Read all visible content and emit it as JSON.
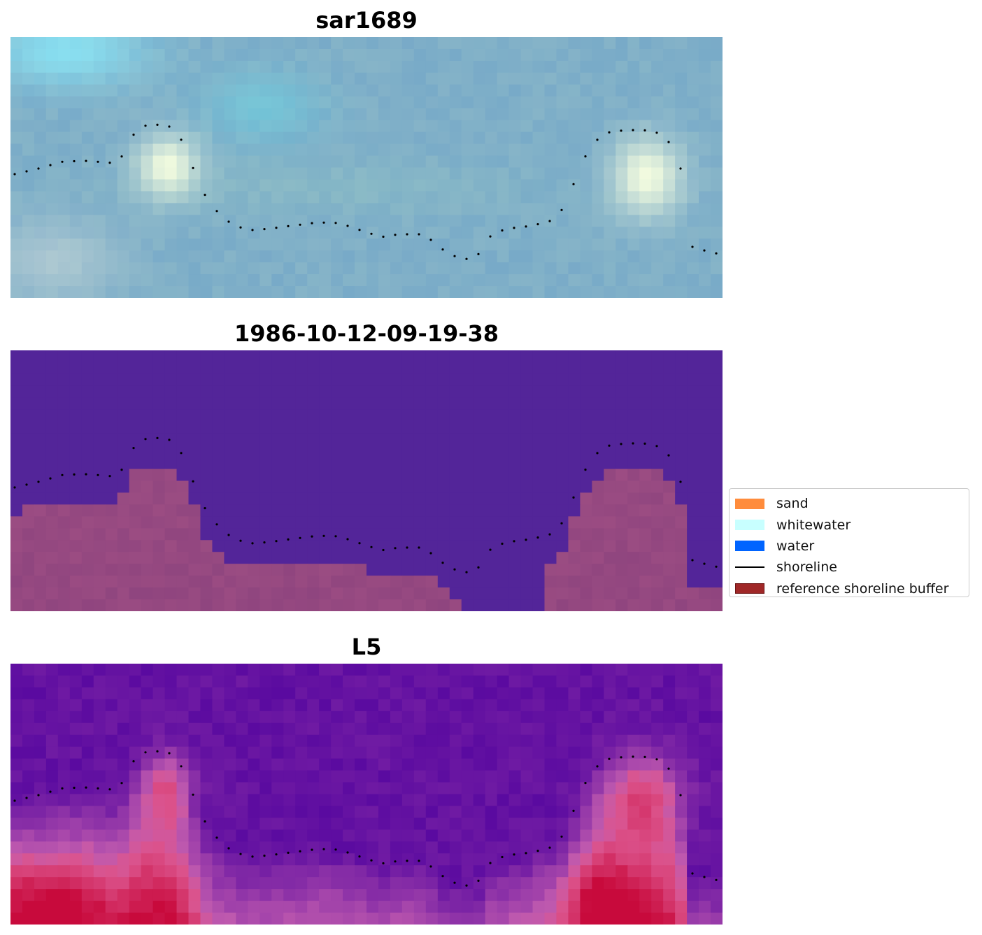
{
  "panels": [
    {
      "title": "sar1689",
      "kind": "rgb"
    },
    {
      "title": "1986-10-12-09-19-38",
      "kind": "classification"
    },
    {
      "title": "L5",
      "kind": "index"
    }
  ],
  "legend": {
    "items": [
      {
        "label": "sand",
        "color": "#ff8c3c",
        "type": "patch"
      },
      {
        "label": "whitewater",
        "color": "#c8ffff",
        "type": "patch"
      },
      {
        "label": "water",
        "color": "#0064ff",
        "type": "patch"
      },
      {
        "label": "shoreline",
        "color": "#000000",
        "type": "line"
      },
      {
        "label": "reference shoreline buffer",
        "color": "#a02828",
        "type": "patch"
      }
    ]
  },
  "colors": {
    "background_water_class": "#532599",
    "buffer_overlay": "#a04f84",
    "index_low": "#5a0aa0",
    "index_high": "#c80a3c",
    "rgb_base": "#86b4c8",
    "rgb_bright": "#f8ffe0"
  }
}
